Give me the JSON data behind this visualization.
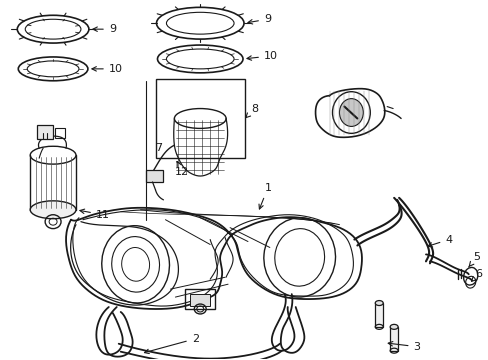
{
  "bg": "#ffffff",
  "lc": "#1a1a1a",
  "fig_w": 4.89,
  "fig_h": 3.6,
  "dpi": 100
}
